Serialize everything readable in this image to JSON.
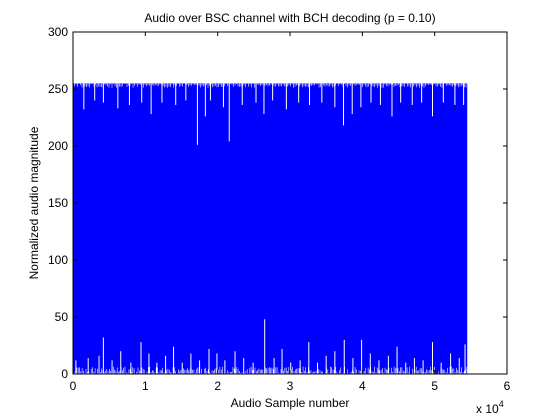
{
  "chart_data": {
    "type": "line",
    "title": "Audio over BSC channel with BCH decoding (p = 0.10)",
    "xlabel": "Audio Sample number",
    "ylabel": "Normalized audio magnitude",
    "xlim": [
      0,
      60000
    ],
    "ylim": [
      0,
      300
    ],
    "x_ticks": [
      0,
      10000,
      20000,
      30000,
      40000,
      50000,
      60000
    ],
    "x_tick_labels": [
      "0",
      "1",
      "2",
      "3",
      "4",
      "5",
      "6"
    ],
    "y_ticks": [
      0,
      50,
      100,
      150,
      200,
      250,
      300
    ],
    "y_tick_labels": [
      "0",
      "50",
      "100",
      "150",
      "200",
      "250",
      "300"
    ],
    "x_multiplier": "x 10",
    "x_multiplier_exponent": "4",
    "grid": false,
    "legend": "none",
    "series": [
      {
        "color": "#0000ff",
        "x_range": [
          0,
          54500
        ],
        "band_low": 0,
        "band_high": 255,
        "dips_from_top": [
          {
            "x": 1500,
            "y": 232
          },
          {
            "x": 3000,
            "y": 240
          },
          {
            "x": 4200,
            "y": 238
          },
          {
            "x": 6200,
            "y": 233
          },
          {
            "x": 7800,
            "y": 236
          },
          {
            "x": 9500,
            "y": 238
          },
          {
            "x": 10800,
            "y": 228
          },
          {
            "x": 12300,
            "y": 238
          },
          {
            "x": 14200,
            "y": 236
          },
          {
            "x": 15600,
            "y": 240
          },
          {
            "x": 17200,
            "y": 201
          },
          {
            "x": 18300,
            "y": 226
          },
          {
            "x": 19000,
            "y": 240
          },
          {
            "x": 20800,
            "y": 234
          },
          {
            "x": 21600,
            "y": 204
          },
          {
            "x": 23400,
            "y": 236
          },
          {
            "x": 25300,
            "y": 238
          },
          {
            "x": 26400,
            "y": 228
          },
          {
            "x": 27600,
            "y": 240
          },
          {
            "x": 29500,
            "y": 232
          },
          {
            "x": 31200,
            "y": 238
          },
          {
            "x": 32700,
            "y": 236
          },
          {
            "x": 34400,
            "y": 238
          },
          {
            "x": 36200,
            "y": 234
          },
          {
            "x": 37400,
            "y": 218
          },
          {
            "x": 38600,
            "y": 228
          },
          {
            "x": 39800,
            "y": 234
          },
          {
            "x": 41200,
            "y": 238
          },
          {
            "x": 42500,
            "y": 236
          },
          {
            "x": 44100,
            "y": 226
          },
          {
            "x": 45300,
            "y": 238
          },
          {
            "x": 46900,
            "y": 236
          },
          {
            "x": 48200,
            "y": 238
          },
          {
            "x": 49700,
            "y": 226
          },
          {
            "x": 51200,
            "y": 238
          },
          {
            "x": 52800,
            "y": 236
          },
          {
            "x": 54000,
            "y": 236
          }
        ],
        "spikes_from_bottom": [
          {
            "x": 400,
            "y": 12
          },
          {
            "x": 2100,
            "y": 14
          },
          {
            "x": 3600,
            "y": 16
          },
          {
            "x": 4200,
            "y": 32
          },
          {
            "x": 5400,
            "y": 12
          },
          {
            "x": 6600,
            "y": 20
          },
          {
            "x": 8000,
            "y": 10
          },
          {
            "x": 9400,
            "y": 28
          },
          {
            "x": 10500,
            "y": 18
          },
          {
            "x": 11600,
            "y": 10
          },
          {
            "x": 12800,
            "y": 16
          },
          {
            "x": 13900,
            "y": 24
          },
          {
            "x": 15100,
            "y": 10
          },
          {
            "x": 16300,
            "y": 18
          },
          {
            "x": 17500,
            "y": 12
          },
          {
            "x": 18800,
            "y": 22
          },
          {
            "x": 19900,
            "y": 18
          },
          {
            "x": 21000,
            "y": 12
          },
          {
            "x": 22400,
            "y": 20
          },
          {
            "x": 23600,
            "y": 14
          },
          {
            "x": 24900,
            "y": 10
          },
          {
            "x": 26500,
            "y": 48
          },
          {
            "x": 27800,
            "y": 14
          },
          {
            "x": 28900,
            "y": 22
          },
          {
            "x": 30100,
            "y": 10
          },
          {
            "x": 31400,
            "y": 12
          },
          {
            "x": 32600,
            "y": 28
          },
          {
            "x": 33800,
            "y": 10
          },
          {
            "x": 35000,
            "y": 16
          },
          {
            "x": 36200,
            "y": 20
          },
          {
            "x": 37500,
            "y": 30
          },
          {
            "x": 38700,
            "y": 14
          },
          {
            "x": 39900,
            "y": 30
          },
          {
            "x": 41100,
            "y": 18
          },
          {
            "x": 42300,
            "y": 12
          },
          {
            "x": 43600,
            "y": 16
          },
          {
            "x": 44800,
            "y": 24
          },
          {
            "x": 46000,
            "y": 10
          },
          {
            "x": 47200,
            "y": 14
          },
          {
            "x": 48400,
            "y": 12
          },
          {
            "x": 49700,
            "y": 28
          },
          {
            "x": 50900,
            "y": 10
          },
          {
            "x": 52200,
            "y": 18
          },
          {
            "x": 53400,
            "y": 14
          },
          {
            "x": 54200,
            "y": 26
          }
        ]
      }
    ]
  }
}
